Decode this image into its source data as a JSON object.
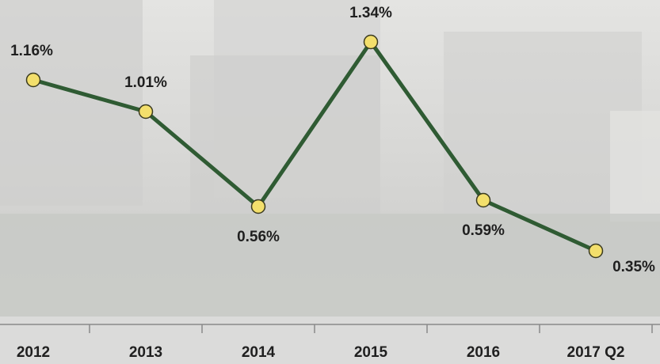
{
  "chart_data": {
    "type": "line",
    "categories": [
      "2012",
      "2013",
      "2014",
      "2015",
      "2016",
      "2017 Q2"
    ],
    "values": [
      1.16,
      1.01,
      0.56,
      1.34,
      0.59,
      0.35
    ],
    "value_labels": [
      "1.16%",
      "1.01%",
      "0.56%",
      "1.34%",
      "0.59%",
      "0.35%"
    ],
    "color": "#2f5b33",
    "marker_color": "#f3df6c"
  }
}
